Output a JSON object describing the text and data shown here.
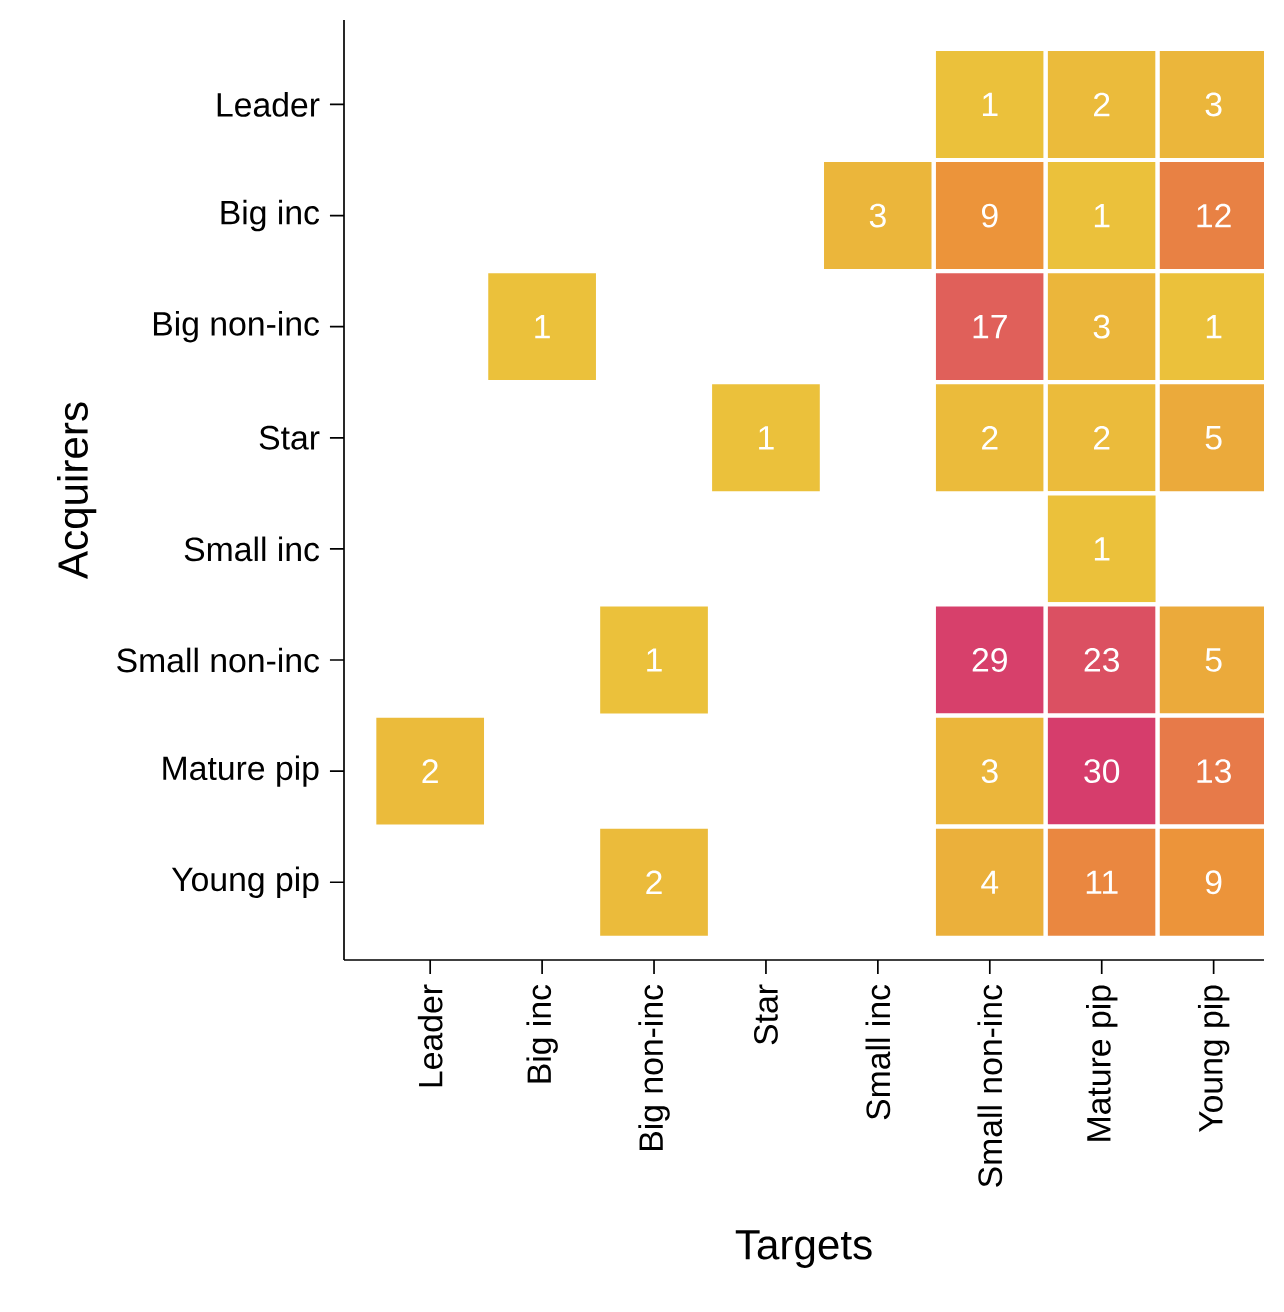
{
  "chart_data": {
    "type": "heatmap",
    "xlabel": "Targets",
    "ylabel": "Acquirers",
    "categories": [
      "Leader",
      "Big inc",
      "Big non-inc",
      "Star",
      "Small inc",
      "Small non-inc",
      "Mature pip",
      "Young pip"
    ],
    "y_categories": [
      "Leader",
      "Big inc",
      "Big non-inc",
      "Star",
      "Small inc",
      "Small non-inc",
      "Mature pip",
      "Young pip"
    ],
    "cells": [
      [
        null,
        null,
        null,
        null,
        null,
        1,
        2,
        3
      ],
      [
        null,
        null,
        null,
        null,
        3,
        9,
        1,
        12
      ],
      [
        null,
        1,
        null,
        null,
        null,
        17,
        3,
        1
      ],
      [
        null,
        null,
        null,
        1,
        null,
        2,
        2,
        5
      ],
      [
        null,
        null,
        null,
        null,
        null,
        null,
        1,
        null
      ],
      [
        null,
        null,
        1,
        null,
        null,
        29,
        23,
        5
      ],
      [
        2,
        null,
        null,
        null,
        null,
        3,
        30,
        13
      ],
      [
        null,
        null,
        2,
        null,
        null,
        4,
        11,
        9
      ]
    ],
    "data_labels": true
  }
}
